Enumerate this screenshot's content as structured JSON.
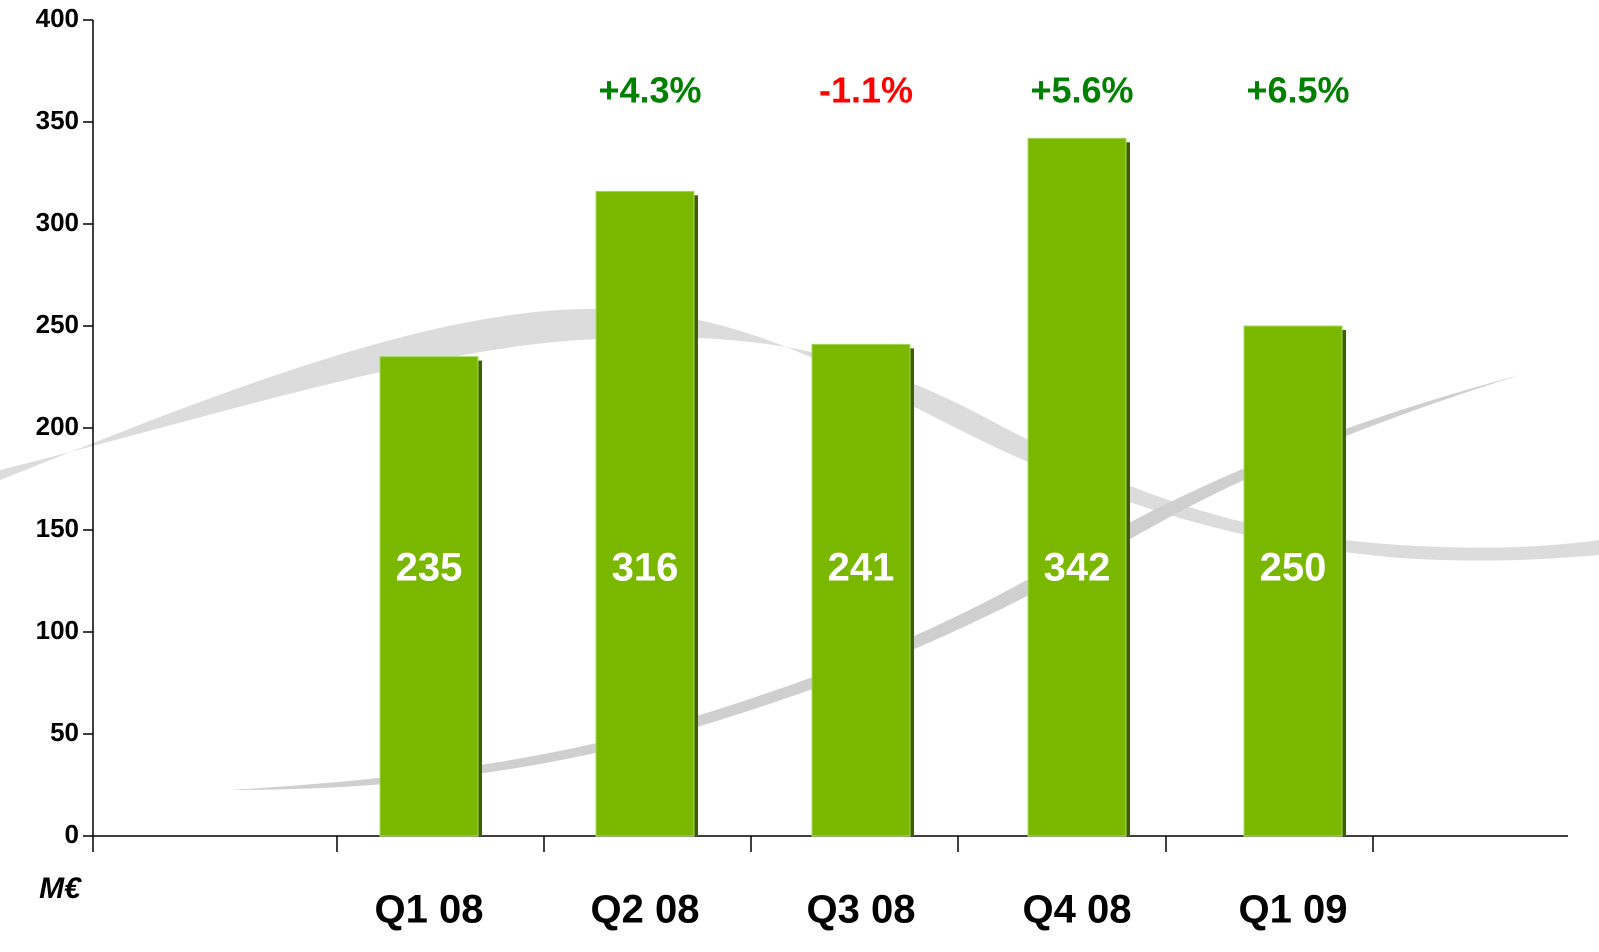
{
  "chart_data": {
    "type": "bar",
    "y_unit": "M€",
    "categories": [
      "Q1 08",
      "Q2 08",
      "Q3 08",
      "Q4 08",
      "Q1 09"
    ],
    "values": [
      235,
      316,
      241,
      342,
      250
    ],
    "color": "#7ab800",
    "ylim": [
      0,
      400
    ],
    "yticks": [
      0,
      50,
      100,
      150,
      200,
      250,
      300,
      350,
      400
    ],
    "grid": false,
    "annotations": [
      {
        "category": "Q2 08",
        "text": "+4.3%",
        "color": "#008000"
      },
      {
        "category": "Q3 08",
        "text": "-1.1%",
        "color": "#ff0000"
      },
      {
        "category": "Q4 08",
        "text": "+5.6%",
        "color": "#008000"
      },
      {
        "category": "Q1 09",
        "text": "+6.5%",
        "color": "#008000"
      }
    ]
  }
}
